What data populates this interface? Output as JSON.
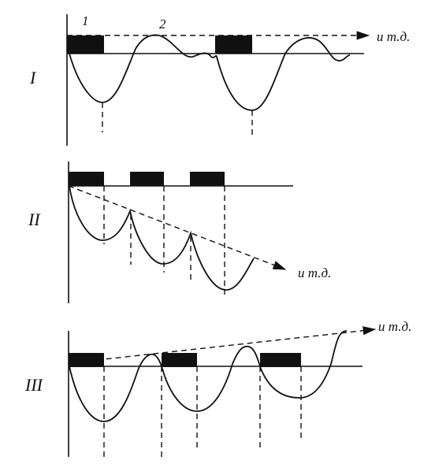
{
  "panels": [
    {
      "label": "I",
      "continuation": "и т.д.",
      "markers": [
        "1",
        "2"
      ]
    },
    {
      "label": "II",
      "continuation": "и т.д."
    },
    {
      "label": "III",
      "continuation": "и т.д."
    }
  ]
}
